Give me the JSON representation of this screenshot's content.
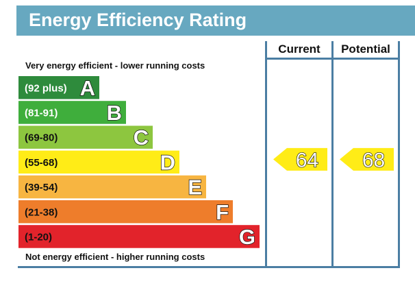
{
  "header": {
    "title": "Energy Efficiency Rating"
  },
  "table": {
    "current_label": "Current",
    "potential_label": "Potential"
  },
  "captions": {
    "top": "Very energy efficient - lower running costs",
    "bottom": "Not energy efficient - higher running costs"
  },
  "chart_data": {
    "type": "bar",
    "title": "Energy Efficiency Rating",
    "bands": [
      {
        "letter": "A",
        "range": "(92 plus)",
        "color": "#2e8b3c",
        "range_color": "#ffffff"
      },
      {
        "letter": "B",
        "range": "(81-91)",
        "color": "#3fae3c",
        "range_color": "#ffffff"
      },
      {
        "letter": "C",
        "range": "(69-80)",
        "color": "#8dc63f",
        "range_color": "#111111"
      },
      {
        "letter": "D",
        "range": "(55-68)",
        "color": "#ffec17",
        "range_color": "#111111"
      },
      {
        "letter": "E",
        "range": "(39-54)",
        "color": "#f7b541",
        "range_color": "#111111"
      },
      {
        "letter": "F",
        "range": "(21-38)",
        "color": "#ee7d2b",
        "range_color": "#111111"
      },
      {
        "letter": "G",
        "range": "(1-20)",
        "color": "#e2232b",
        "range_color": "#111111"
      }
    ],
    "current": {
      "value": 64,
      "band": "D",
      "color": "#ffec17"
    },
    "potential": {
      "value": 68,
      "band": "D",
      "color": "#ffec17"
    }
  }
}
